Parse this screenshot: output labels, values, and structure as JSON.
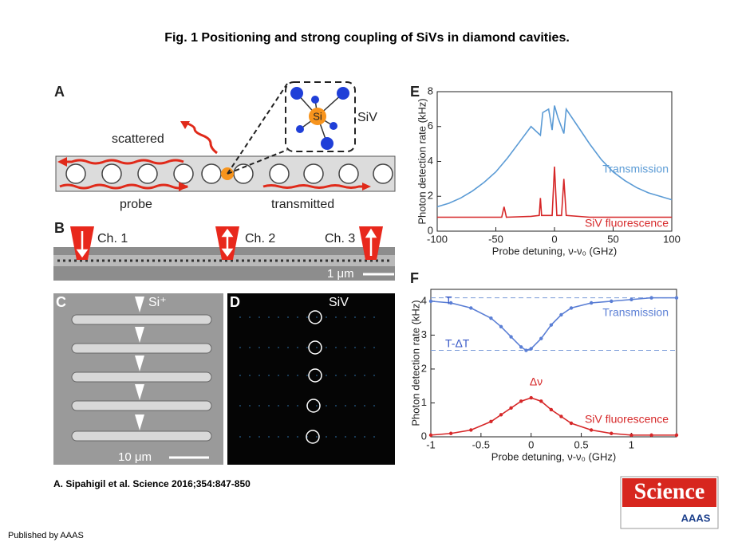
{
  "title": "Fig. 1 Positioning and strong coupling of SiVs in diamond cavities.",
  "panel_a": {
    "label": "A",
    "scattered": "scattered",
    "probe": "probe",
    "transmitted": "transmitted",
    "siv": "SiV",
    "si": "Si"
  },
  "panel_b": {
    "label": "B",
    "channels": [
      "Ch. 1",
      "Ch. 2",
      "Ch. 3"
    ],
    "scale": "1 μm"
  },
  "panel_c": {
    "label": "C",
    "ion": "Si⁺",
    "scale": "10 μm"
  },
  "panel_d": {
    "label": "D",
    "siv": "SiV"
  },
  "chart_data": [
    {
      "type": "line",
      "label": "E",
      "x_label": "Probe detuning, ν-ν₀ (GHz)",
      "y_label": "Photon detection rate (kHz)",
      "xlim": [
        -100,
        100
      ],
      "ylim": [
        0,
        8
      ],
      "xticks": [
        -100,
        -50,
        0,
        50,
        100
      ],
      "yticks": [
        0,
        2,
        4,
        6,
        8
      ],
      "series": [
        {
          "name": "Transmission",
          "color": "#5b9bd5",
          "x": [
            -100,
            -90,
            -80,
            -70,
            -60,
            -50,
            -40,
            -30,
            -20,
            -12,
            -10,
            -5,
            -2,
            0,
            3,
            8,
            10,
            20,
            30,
            40,
            50,
            60,
            70,
            80,
            90,
            100
          ],
          "values": [
            1.4,
            1.6,
            1.9,
            2.3,
            2.8,
            3.4,
            4.2,
            5.1,
            6.0,
            5.5,
            6.8,
            7.0,
            5.8,
            7.2,
            6.5,
            5.6,
            7.0,
            6.0,
            5.0,
            4.1,
            3.4,
            2.9,
            2.5,
            2.2,
            2.0,
            1.8
          ]
        },
        {
          "name": "SiV fluorescence",
          "color": "#d62728",
          "x": [
            -100,
            -80,
            -60,
            -45,
            -43,
            -41,
            -20,
            -13,
            -12,
            -11,
            -2,
            0,
            2,
            6,
            8,
            10,
            30,
            60,
            100
          ],
          "values": [
            0.8,
            0.8,
            0.8,
            0.8,
            1.4,
            0.8,
            0.85,
            0.9,
            1.9,
            0.9,
            0.9,
            3.7,
            0.9,
            0.9,
            3.0,
            0.9,
            0.8,
            0.8,
            0.8
          ]
        }
      ]
    },
    {
      "type": "line",
      "label": "F",
      "x_label": "Probe detuning, ν-ν₀ (GHz)",
      "y_label": "Photon detection rate (kHz)",
      "xlim": [
        -1,
        1.45
      ],
      "ylim": [
        0,
        4.35
      ],
      "xticks": [
        -1,
        -0.5,
        0,
        0.5,
        1
      ],
      "yticks": [
        0,
        1,
        2,
        3,
        4
      ],
      "markers": true,
      "reference_lines": [
        4.1,
        2.55
      ],
      "annotations": [
        "T",
        "T-ΔT",
        "Δν"
      ],
      "series": [
        {
          "name": "Transmission",
          "color": "#5b7fd5",
          "x": [
            -1,
            -0.8,
            -0.6,
            -0.4,
            -0.3,
            -0.2,
            -0.1,
            -0.05,
            0,
            0.1,
            0.2,
            0.3,
            0.4,
            0.6,
            0.8,
            1,
            1.2,
            1.45
          ],
          "values": [
            4.0,
            3.95,
            3.8,
            3.5,
            3.25,
            2.95,
            2.65,
            2.55,
            2.6,
            2.9,
            3.3,
            3.6,
            3.8,
            3.95,
            4.0,
            4.05,
            4.1,
            4.1
          ]
        },
        {
          "name": "SiV fluorescence",
          "color": "#d62728",
          "x": [
            -1,
            -0.8,
            -0.6,
            -0.4,
            -0.3,
            -0.2,
            -0.1,
            0,
            0.1,
            0.2,
            0.3,
            0.4,
            0.6,
            0.8,
            1,
            1.2,
            1.45
          ],
          "values": [
            0.05,
            0.1,
            0.2,
            0.45,
            0.65,
            0.85,
            1.05,
            1.15,
            1.05,
            0.8,
            0.6,
            0.4,
            0.2,
            0.1,
            0.05,
            0.05,
            0.05
          ]
        }
      ]
    }
  ],
  "citation": "A. Sipahigil et al. Science 2016;354:847-850",
  "publisher": "Published by AAAS",
  "logo": {
    "name": "Science",
    "org": "AAAS"
  }
}
